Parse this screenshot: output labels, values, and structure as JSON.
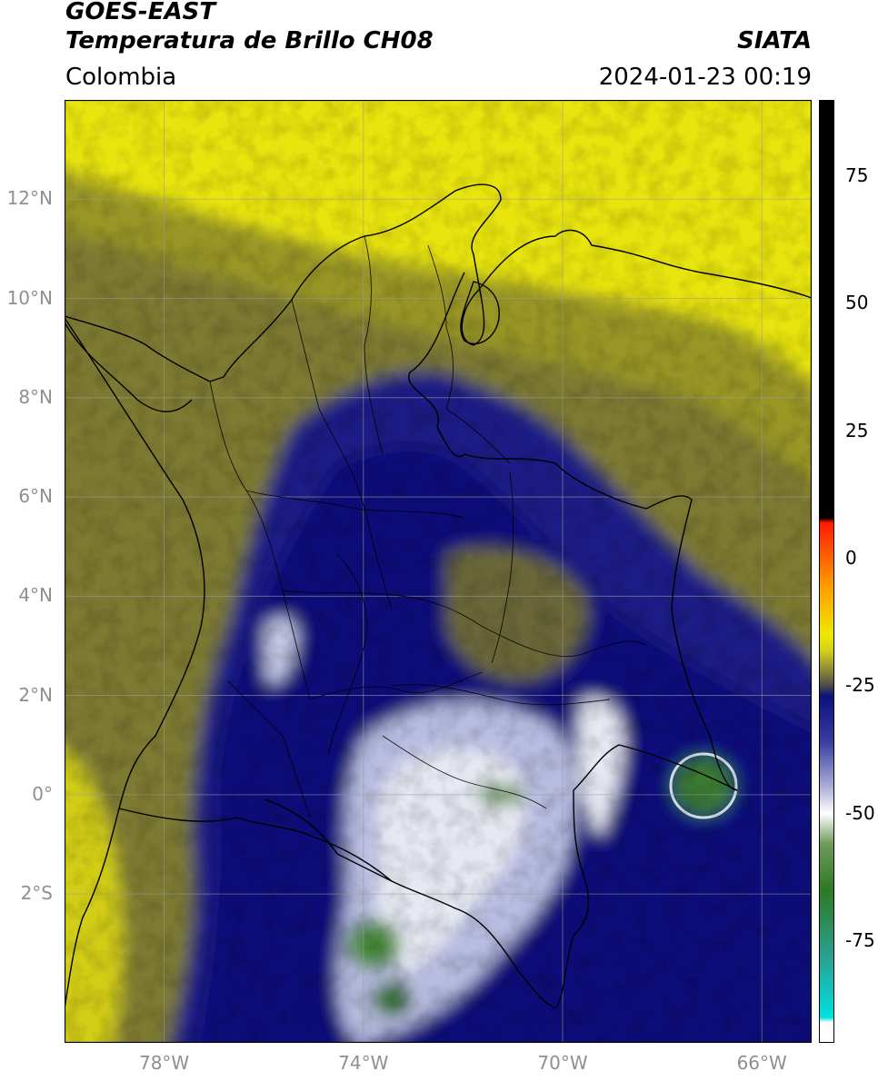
{
  "header": {
    "satellite": "GOES-EAST",
    "product": "Temperatura de Brillo CH08",
    "organization": "SIATA",
    "region": "Colombia",
    "datetime": "2024-01-23 00:19"
  },
  "map": {
    "lon_range": [
      -80,
      -65
    ],
    "lat_range": [
      -5,
      14
    ],
    "lat_ticks": [
      {
        "value": 12,
        "label": "12°N"
      },
      {
        "value": 10,
        "label": "10°N"
      },
      {
        "value": 8,
        "label": "8°N"
      },
      {
        "value": 6,
        "label": "6°N"
      },
      {
        "value": 4,
        "label": "4°N"
      },
      {
        "value": 2,
        "label": "2°N"
      },
      {
        "value": 0,
        "label": "0°"
      },
      {
        "value": -2,
        "label": "2°S"
      }
    ],
    "lon_ticks": [
      {
        "value": -78,
        "label": "78°W"
      },
      {
        "value": -74,
        "label": "74°W"
      },
      {
        "value": -70,
        "label": "70°W"
      },
      {
        "value": -66,
        "label": "66°W"
      }
    ],
    "gridlines": true,
    "colors": {
      "warm_yellow": "#e8e40e",
      "olive": "#7d7a32",
      "navy": "#14187e",
      "pale": "#e6e8f2",
      "green": "#3a7a30"
    }
  },
  "colorbar": {
    "range": [
      -95,
      90
    ],
    "ticks": [
      {
        "value": 75,
        "label": "75"
      },
      {
        "value": 50,
        "label": "50"
      },
      {
        "value": 25,
        "label": "25"
      },
      {
        "value": 0,
        "label": "0"
      },
      {
        "value": -25,
        "label": "-25"
      },
      {
        "value": -50,
        "label": "-50"
      },
      {
        "value": -75,
        "label": "-75"
      }
    ],
    "stops": [
      {
        "value": 90,
        "color": "#000000"
      },
      {
        "value": 8,
        "color": "#000000"
      },
      {
        "value": 7,
        "color": "#ff1a00"
      },
      {
        "value": -5,
        "color": "#ff9900"
      },
      {
        "value": -15,
        "color": "#f0e800"
      },
      {
        "value": -18,
        "color": "#d4d019"
      },
      {
        "value": -22,
        "color": "#8a8638"
      },
      {
        "value": -25,
        "color": "#4a4a4a"
      },
      {
        "value": -27,
        "color": "#0c107a"
      },
      {
        "value": -36,
        "color": "#3a3ea0"
      },
      {
        "value": -45,
        "color": "#aeb2d8"
      },
      {
        "value": -50,
        "color": "#ffffff"
      },
      {
        "value": -56,
        "color": "#6e9a5a"
      },
      {
        "value": -65,
        "color": "#2e7a22"
      },
      {
        "value": -78,
        "color": "#2aa090"
      },
      {
        "value": -90,
        "color": "#00e0e0"
      },
      {
        "value": -91,
        "color": "#ffffff"
      },
      {
        "value": -95,
        "color": "#ffffff"
      }
    ]
  }
}
